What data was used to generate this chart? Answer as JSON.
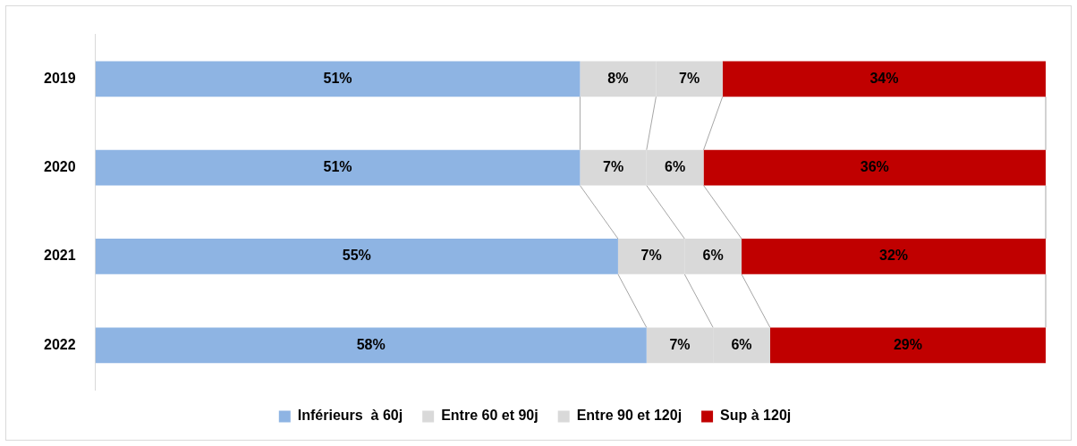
{
  "chart_data": {
    "type": "bar",
    "orientation": "horizontal",
    "stacked": true,
    "categories": [
      "2019",
      "2020",
      "2021",
      "2022"
    ],
    "series": [
      {
        "name": "Inférieurs  à 60j",
        "color": "#8eb4e3",
        "values": [
          51,
          51,
          55,
          58
        ],
        "value_labels": [
          "51%",
          "51%",
          "55%",
          "58%"
        ]
      },
      {
        "name": "Entre 60 et 90j",
        "color": "#d9d9d9",
        "values": [
          8,
          7,
          7,
          7
        ],
        "value_labels": [
          "8%",
          "7%",
          "7%",
          "7%"
        ]
      },
      {
        "name": "Entre 90 et 120j",
        "color": "#d9d9d9",
        "values": [
          7,
          6,
          6,
          6
        ],
        "value_labels": [
          "7%",
          "6%",
          "6%",
          "6%"
        ]
      },
      {
        "name": "Sup à 120j",
        "color": "#c00000",
        "values": [
          34,
          36,
          32,
          29
        ],
        "value_labels": [
          "34%",
          "36%",
          "32%",
          "29%"
        ]
      }
    ],
    "legend": "bottom"
  }
}
